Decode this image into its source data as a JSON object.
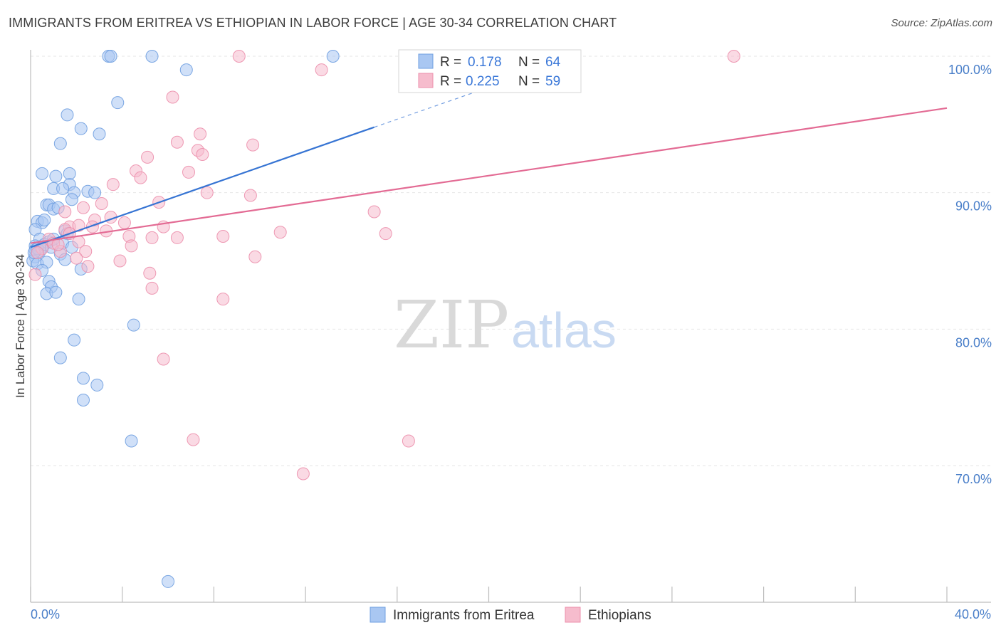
{
  "header": {
    "title": "IMMIGRANTS FROM ERITREA VS ETHIOPIAN IN LABOR FORCE | AGE 30-34 CORRELATION CHART",
    "source": "Source: ZipAtlas.com"
  },
  "watermark": {
    "zip": "ZIP",
    "atlas": "atlas"
  },
  "colors": {
    "series1_fill": "#a9c7f2",
    "series1_stroke": "#6f9fe0",
    "series1_line": "#3674d3",
    "series2_fill": "#f6bccd",
    "series2_stroke": "#ec8fac",
    "series2_line": "#e36b94",
    "grid": "#e6e6e6",
    "tick_label": "#4a7fc9"
  },
  "legend_box": {
    "rows": [
      {
        "r_label": "R =",
        "r_value": "0.178",
        "n_label": "N =",
        "n_value": "64"
      },
      {
        "r_label": "R =",
        "r_value": "0.225",
        "n_label": "N =",
        "n_value": "59"
      }
    ]
  },
  "chart_data": {
    "type": "scatter",
    "title": "IMMIGRANTS FROM ERITREA VS ETHIOPIAN IN LABOR FORCE | AGE 30-34 CORRELATION CHART",
    "xlabel": "",
    "ylabel": "In Labor Force | Age 30-34",
    "xlim": [
      0,
      40
    ],
    "ylim": [
      61,
      101.5
    ],
    "x_tick_labels": [
      "0.0%",
      "40.0%"
    ],
    "y_ticks": [
      70,
      80,
      90,
      100
    ],
    "y_tick_labels": [
      "70.0%",
      "80.0%",
      "90.0%",
      "100.0%"
    ],
    "grid": true,
    "legend_position": "bottom-center",
    "series": [
      {
        "name": "Immigrants from Eritrea",
        "R": 0.178,
        "N": 64,
        "trend": {
          "x0": 0.0,
          "y0": 86.0,
          "x1": 15.0,
          "y1": 94.8,
          "dashed_to_x": 21.0,
          "dashed_to_y": 98.3
        },
        "points": [
          [
            3.4,
            100
          ],
          [
            3.5,
            100
          ],
          [
            5.3,
            100
          ],
          [
            13.2,
            100
          ],
          [
            6.8,
            99
          ],
          [
            3.8,
            96.6
          ],
          [
            1.6,
            95.7
          ],
          [
            2.2,
            94.7
          ],
          [
            3.0,
            94.3
          ],
          [
            1.3,
            93.6
          ],
          [
            0.5,
            91.4
          ],
          [
            1.1,
            91.2
          ],
          [
            1.7,
            91.4
          ],
          [
            1.7,
            90.6
          ],
          [
            1.0,
            90.3
          ],
          [
            1.9,
            90.0
          ],
          [
            2.5,
            90.1
          ],
          [
            2.8,
            90.0
          ],
          [
            1.4,
            90.3
          ],
          [
            0.7,
            89.1
          ],
          [
            0.8,
            89.1
          ],
          [
            1.0,
            88.8
          ],
          [
            1.2,
            88.9
          ],
          [
            0.3,
            87.9
          ],
          [
            0.5,
            87.8
          ],
          [
            0.2,
            87.3
          ],
          [
            1.5,
            87.2
          ],
          [
            1.6,
            87.0
          ],
          [
            0.4,
            86.6
          ],
          [
            0.8,
            86.4
          ],
          [
            1.4,
            86.3
          ],
          [
            0.2,
            86.1
          ],
          [
            0.5,
            86.0
          ],
          [
            0.2,
            85.8
          ],
          [
            0.4,
            85.7
          ],
          [
            1.8,
            86.0
          ],
          [
            1.3,
            85.5
          ],
          [
            0.2,
            85.3
          ],
          [
            0.1,
            85.0
          ],
          [
            0.3,
            84.8
          ],
          [
            0.7,
            84.9
          ],
          [
            1.5,
            85.1
          ],
          [
            0.5,
            84.3
          ],
          [
            2.2,
            84.4
          ],
          [
            0.8,
            83.5
          ],
          [
            0.9,
            83.1
          ],
          [
            0.7,
            82.6
          ],
          [
            1.1,
            82.7
          ],
          [
            2.1,
            82.2
          ],
          [
            4.5,
            80.3
          ],
          [
            1.9,
            79.2
          ],
          [
            1.3,
            77.9
          ],
          [
            2.3,
            76.4
          ],
          [
            2.9,
            75.9
          ],
          [
            2.3,
            74.8
          ],
          [
            4.4,
            71.8
          ],
          [
            6.0,
            61.5
          ],
          [
            0.3,
            85.9
          ],
          [
            0.6,
            86.2
          ],
          [
            0.9,
            86.0
          ],
          [
            0.15,
            85.6
          ],
          [
            1.0,
            86.6
          ],
          [
            0.6,
            88.0
          ],
          [
            1.8,
            89.5
          ]
        ]
      },
      {
        "name": "Ethiopians",
        "R": 0.225,
        "N": 59,
        "trend": {
          "x0": 0.0,
          "y0": 86.3,
          "x1": 40.0,
          "y1": 96.2
        },
        "points": [
          [
            9.1,
            100
          ],
          [
            20.8,
            100
          ],
          [
            30.7,
            100
          ],
          [
            12.7,
            99.0
          ],
          [
            6.2,
            97.0
          ],
          [
            7.4,
            94.3
          ],
          [
            6.4,
            93.7
          ],
          [
            9.7,
            93.5
          ],
          [
            7.3,
            93.1
          ],
          [
            7.5,
            92.8
          ],
          [
            5.1,
            92.6
          ],
          [
            4.6,
            91.6
          ],
          [
            4.8,
            91.1
          ],
          [
            6.9,
            91.5
          ],
          [
            3.6,
            90.6
          ],
          [
            7.7,
            90.0
          ],
          [
            9.6,
            89.8
          ],
          [
            5.6,
            89.3
          ],
          [
            3.1,
            89.2
          ],
          [
            2.3,
            88.9
          ],
          [
            1.5,
            88.6
          ],
          [
            3.5,
            88.2
          ],
          [
            4.1,
            87.8
          ],
          [
            2.8,
            88.0
          ],
          [
            15.0,
            88.6
          ],
          [
            1.7,
            87.5
          ],
          [
            2.1,
            87.6
          ],
          [
            5.8,
            87.5
          ],
          [
            1.5,
            87.3
          ],
          [
            3.3,
            87.2
          ],
          [
            1.7,
            87.0
          ],
          [
            2.7,
            87.5
          ],
          [
            10.9,
            87.1
          ],
          [
            15.5,
            87.0
          ],
          [
            8.4,
            86.8
          ],
          [
            5.3,
            86.7
          ],
          [
            4.3,
            86.8
          ],
          [
            6.4,
            86.7
          ],
          [
            0.8,
            86.6
          ],
          [
            2.1,
            86.4
          ],
          [
            4.4,
            86.1
          ],
          [
            1.0,
            86.3
          ],
          [
            0.5,
            85.9
          ],
          [
            2.4,
            85.7
          ],
          [
            9.8,
            85.3
          ],
          [
            1.3,
            85.7
          ],
          [
            2.0,
            85.2
          ],
          [
            0.3,
            85.6
          ],
          [
            3.9,
            85.0
          ],
          [
            2.5,
            84.6
          ],
          [
            5.2,
            84.1
          ],
          [
            0.2,
            84.0
          ],
          [
            5.3,
            83.0
          ],
          [
            8.4,
            82.2
          ],
          [
            5.8,
            77.8
          ],
          [
            7.1,
            71.9
          ],
          [
            16.5,
            71.8
          ],
          [
            11.9,
            69.4
          ],
          [
            1.2,
            86.2
          ]
        ]
      }
    ]
  }
}
